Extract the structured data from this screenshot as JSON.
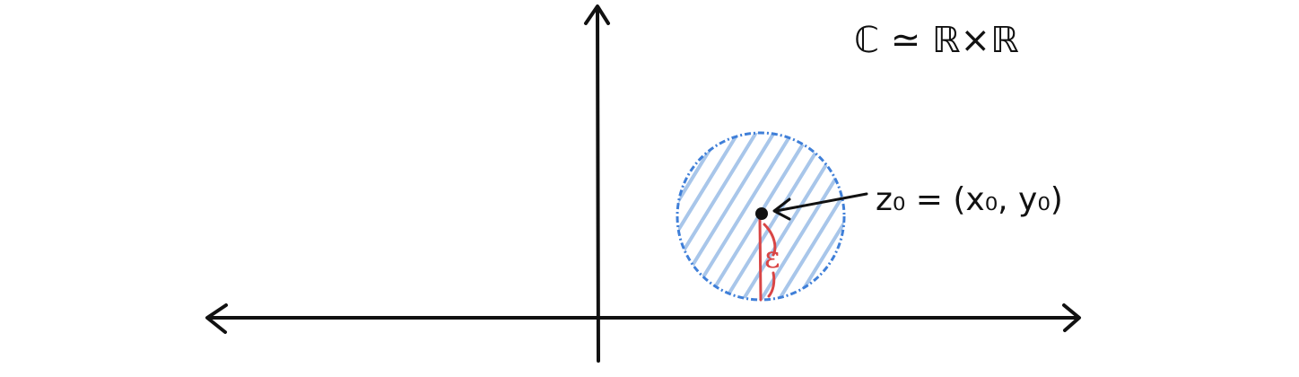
{
  "diagram": {
    "title_label": "ℂ ≃ ℝ×ℝ",
    "point_label": "z₀ = (x₀, y₀)",
    "radius_label": "ε"
  },
  "colors": {
    "ink": "#111111",
    "disk_outline": "#3f7fd8",
    "disk_hatch": "#a8c6ea",
    "radius": "#d94545"
  }
}
